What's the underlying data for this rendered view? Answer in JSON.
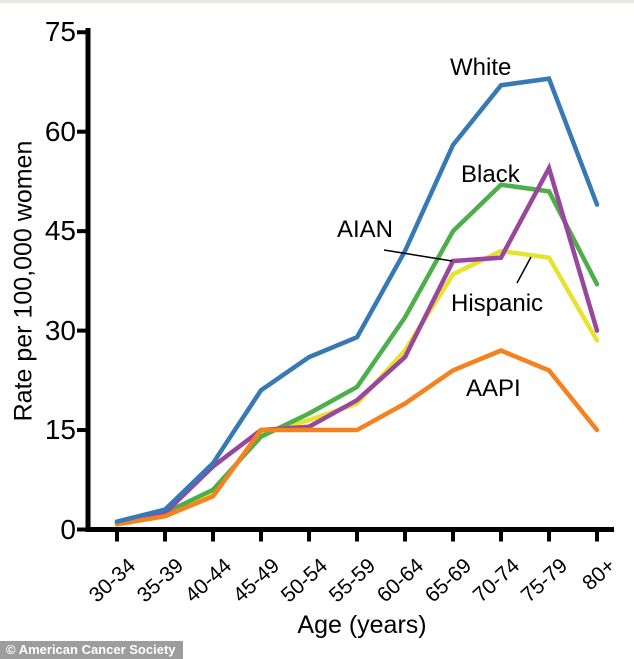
{
  "chart_data": {
    "type": "line",
    "xlabel": "Age (years)",
    "ylabel": "Rate per 100,000 women",
    "categories": [
      "30-34",
      "35-39",
      "40-44",
      "45-49",
      "50-54",
      "55-59",
      "60-64",
      "65-69",
      "70-74",
      "75-79",
      "80+"
    ],
    "yticks": [
      0,
      15,
      30,
      45,
      60,
      75
    ],
    "ylim": [
      0,
      75
    ],
    "grid": false,
    "legend_position": "inline-labels",
    "series": [
      {
        "name": "Hispanic",
        "color": "#e6e22e",
        "values": [
          0.8,
          2,
          5.5,
          14.5,
          16.5,
          19,
          27,
          38.5,
          42,
          41,
          28.5
        ]
      },
      {
        "name": "Black",
        "color": "#4daf4a",
        "values": [
          1,
          2.5,
          6,
          14,
          17.5,
          21.5,
          32,
          45,
          52,
          51,
          37
        ]
      },
      {
        "name": "AIAN",
        "color": "#98469e",
        "values": [
          1,
          2.5,
          9.5,
          15,
          15.5,
          19.5,
          26,
          40.5,
          41,
          54.5,
          30
        ]
      },
      {
        "name": "AAPI",
        "color": "#f5821e",
        "values": [
          0.8,
          2,
          5,
          15,
          15,
          15,
          19,
          24,
          27,
          24,
          15
        ]
      },
      {
        "name": "White",
        "color": "#3779b5",
        "values": [
          1.2,
          3,
          10,
          21,
          26,
          29,
          42,
          58,
          67,
          68,
          49
        ]
      }
    ]
  },
  "watermark": {
    "text": "© American Cancer Society"
  }
}
